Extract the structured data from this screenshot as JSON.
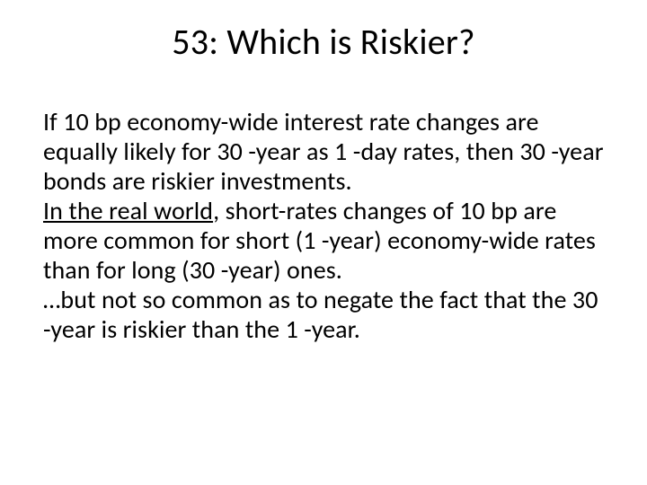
{
  "slide": {
    "title": "53: Which is Riskier?",
    "para1_a": "If 10 bp economy-wide interest rate changes are equally likely for 30 -year as 1 -day rates, then 30 -year bonds are riskier investments.",
    "para2_label": "In the real world",
    "para2_b": ", short-rates changes of 10 bp are more common for short (1 -year) economy-wide rates than for long (30 -year) ones.",
    "para3": "…but not so common as to negate the fact that the 30 -year is riskier than the 1 -year."
  },
  "style": {
    "background_color": "#ffffff",
    "text_color": "#000000",
    "title_fontsize": 40,
    "body_fontsize": 28,
    "font_family": "Calibri"
  }
}
